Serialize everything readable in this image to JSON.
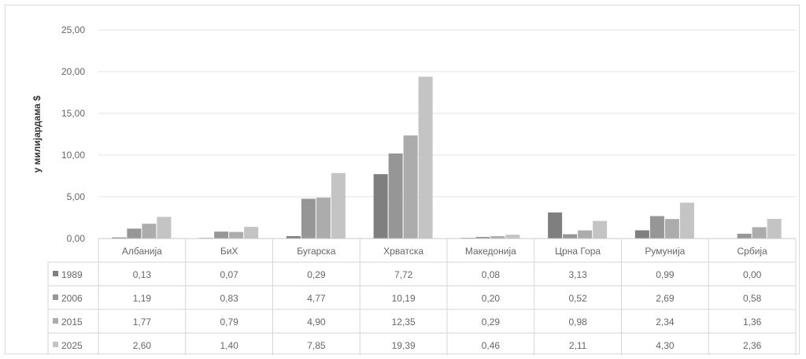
{
  "chart_data": {
    "type": "bar",
    "ylabel": "у милијардама $",
    "ylim": [
      0,
      25
    ],
    "yticks": [
      "25,00",
      "20,00",
      "15,00",
      "10,00",
      "5,00",
      "0,00"
    ],
    "yticks_values": [
      25,
      20,
      15,
      10,
      5,
      0
    ],
    "grid": true,
    "categories": [
      "Албанија",
      "БиХ",
      "Бугарска",
      "Хрватска",
      "Македонија",
      "Црна Гора",
      "Румунија",
      "Србија"
    ],
    "series": [
      {
        "name": "1989",
        "color": "#7f7f7f",
        "values": [
          0.13,
          0.07,
          0.29,
          7.72,
          0.08,
          3.13,
          0.99,
          0.0
        ],
        "labels": [
          "0,13",
          "0,07",
          "0,29",
          "7,72",
          "0,08",
          "3,13",
          "0,99",
          "0,00"
        ]
      },
      {
        "name": "2006",
        "color": "#969696",
        "values": [
          1.19,
          0.83,
          4.77,
          10.19,
          0.2,
          0.52,
          2.69,
          0.58
        ],
        "labels": [
          "1,19",
          "0,83",
          "4,77",
          "10,19",
          "0,20",
          "0,52",
          "2,69",
          "0,58"
        ]
      },
      {
        "name": "2015",
        "color": "#acacac",
        "values": [
          1.77,
          0.79,
          4.9,
          12.35,
          0.29,
          0.98,
          2.34,
          1.36
        ],
        "labels": [
          "1,77",
          "0,79",
          "4,90",
          "12,35",
          "0,29",
          "0,98",
          "2,34",
          "1,36"
        ]
      },
      {
        "name": "2025",
        "color": "#c4c4c4",
        "values": [
          2.6,
          1.4,
          7.85,
          19.39,
          0.46,
          2.11,
          4.3,
          2.36
        ],
        "labels": [
          "2,60",
          "1,40",
          "7,85",
          "19,39",
          "0,46",
          "2,11",
          "4,30",
          "2,36"
        ]
      }
    ]
  }
}
